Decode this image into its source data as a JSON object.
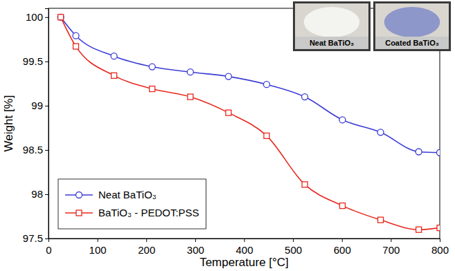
{
  "chart_data": {
    "type": "line",
    "x_label": "Temperature [°C]",
    "y_label": "Weight [%]",
    "x": [
      25,
      56,
      134,
      212,
      290,
      368,
      446,
      524,
      601,
      679,
      757,
      800
    ],
    "series": [
      {
        "name": "Neat BaTiO₃",
        "color": "#3b3bd6",
        "marker": "circle",
        "line_style": "solid",
        "values": [
          100,
          99.79,
          99.56,
          99.44,
          99.38,
          99.33,
          99.24,
          99.1,
          98.84,
          98.7,
          98.48,
          98.47
        ]
      },
      {
        "name": "BaTiO₃ - PEDOT:PSS",
        "color": "#e8281e",
        "marker": "square",
        "line_style": "solid",
        "values": [
          100,
          99.67,
          99.34,
          99.19,
          99.1,
          98.92,
          98.66,
          98.11,
          97.87,
          97.71,
          97.6,
          97.62
        ]
      }
    ],
    "xlim": [
      0,
      800
    ],
    "ylim": [
      97.5,
      100.1
    ],
    "xticks": [
      0,
      100,
      200,
      300,
      400,
      500,
      600,
      700,
      800
    ],
    "yticks": [
      97.5,
      98,
      98.5,
      99,
      99.5,
      100
    ],
    "grid": false,
    "legend": "lower left",
    "annotations": [
      {
        "text": "Neat BaTiO₃",
        "color": "#f3f3ef"
      },
      {
        "text": "Coated BaTiO₃",
        "color": "#8e97c9"
      }
    ]
  }
}
